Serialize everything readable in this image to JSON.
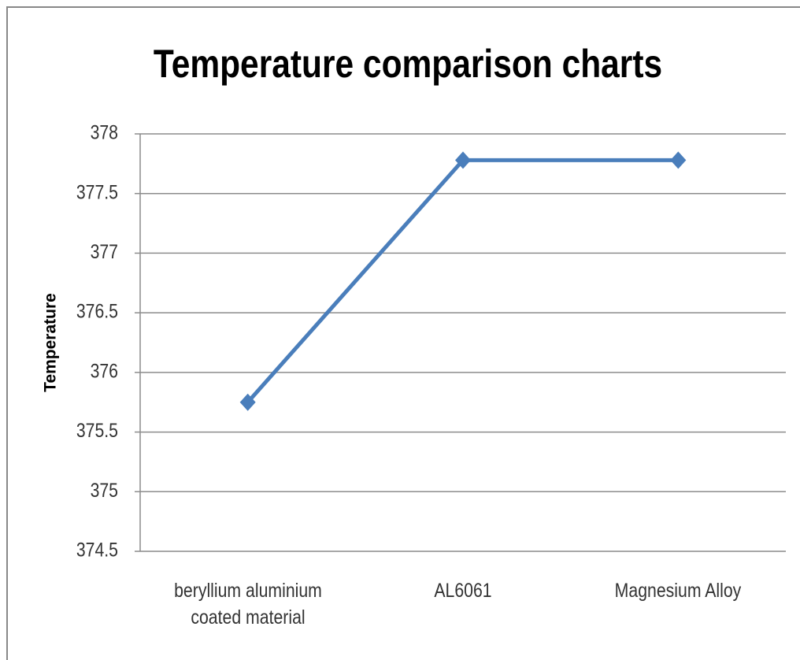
{
  "chart_data": {
    "type": "line",
    "title": "Temperature comparison charts",
    "y_label": "Temperature",
    "categories": [
      "beryllium aluminium coated material",
      "AL6061",
      "Magnesium Alloy"
    ],
    "series": [
      {
        "name": "Temperature",
        "color": "#4a7ebb",
        "values": [
          375.75,
          377.78,
          377.78
        ]
      }
    ],
    "ylim": [
      374.5,
      378
    ],
    "yticks": [
      374.5,
      375,
      375.5,
      376,
      376.5,
      377,
      377.5,
      378
    ],
    "grid": true
  }
}
